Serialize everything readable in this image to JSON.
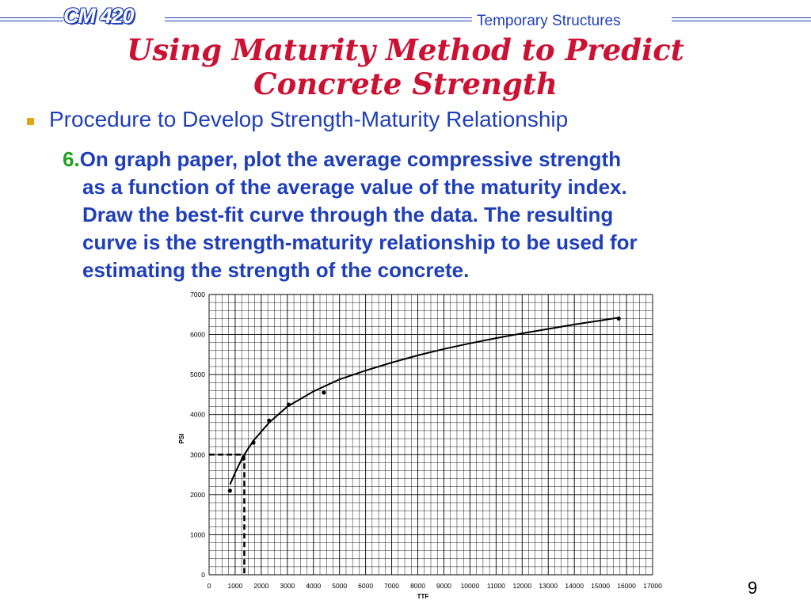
{
  "header": {
    "course": "CM 420",
    "subject": "Temporary Structures"
  },
  "title": {
    "line1": "Using Maturity Method to Predict",
    "line2": "Concrete Strength"
  },
  "bullet": {
    "text": "Procedure to Develop Strength-Maturity Relationship"
  },
  "step": {
    "number": "6.",
    "lines": [
      "On graph paper, plot the average compressive strength",
      "as a function of the average value of the maturity index.",
      "Draw the best-fit curve through the data.  The resulting",
      "curve is the strength-maturity relationship to be used for",
      "estimating the strength of the concrete."
    ]
  },
  "chart_data": {
    "type": "scatter",
    "xlabel": "TTF",
    "ylabel": "PSI",
    "xlim": [
      0,
      17000
    ],
    "ylim": [
      0,
      7000
    ],
    "x_ticks": [
      "0",
      "1000",
      "2000",
      "3000",
      "4000",
      "5000",
      "6000",
      "7000",
      "8000",
      "9000",
      "10000",
      "11000",
      "12000",
      "13000",
      "14000",
      "15000",
      "16000",
      "17000"
    ],
    "y_ticks": [
      "0",
      "1000",
      "2000",
      "3000",
      "4000",
      "5000",
      "6000",
      "7000"
    ],
    "grid": true,
    "series": [
      {
        "points": [
          {
            "x": 800,
            "y": 2100
          },
          {
            "x": 1300,
            "y": 2900
          },
          {
            "x": 1700,
            "y": 3300
          },
          {
            "x": 2300,
            "y": 3850
          },
          {
            "x": 3050,
            "y": 4250
          },
          {
            "x": 4400,
            "y": 4550
          },
          {
            "x": 15700,
            "y": 6400
          }
        ]
      }
    ],
    "fit_curve": [
      {
        "x": 800,
        "y": 2250
      },
      {
        "x": 1000,
        "y": 2550
      },
      {
        "x": 1300,
        "y": 2950
      },
      {
        "x": 1700,
        "y": 3350
      },
      {
        "x": 2300,
        "y": 3800
      },
      {
        "x": 3000,
        "y": 4200
      },
      {
        "x": 4000,
        "y": 4580
      },
      {
        "x": 5000,
        "y": 4880
      },
      {
        "x": 6000,
        "y": 5100
      },
      {
        "x": 7000,
        "y": 5300
      },
      {
        "x": 8000,
        "y": 5480
      },
      {
        "x": 9000,
        "y": 5640
      },
      {
        "x": 10000,
        "y": 5780
      },
      {
        "x": 11000,
        "y": 5910
      },
      {
        "x": 12000,
        "y": 6030
      },
      {
        "x": 13000,
        "y": 6140
      },
      {
        "x": 14000,
        "y": 6250
      },
      {
        "x": 15000,
        "y": 6350
      },
      {
        "x": 15700,
        "y": 6420
      }
    ],
    "reference_line": {
      "x": 1350,
      "y": 3000
    }
  },
  "page_number": "9"
}
